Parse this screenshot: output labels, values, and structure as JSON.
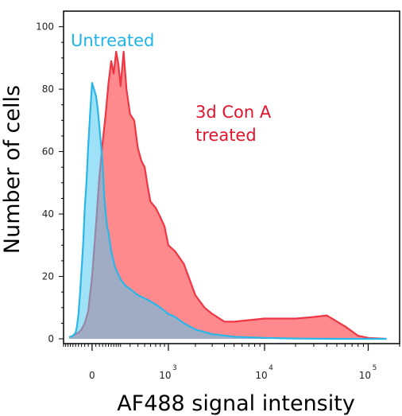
{
  "chart_data": {
    "type": "area",
    "xlabel": "AF488 signal intensity",
    "ylabel": "Number of cells",
    "ylim": [
      0,
      105
    ],
    "yticks": [
      {
        "value": 0,
        "label": "0"
      },
      {
        "value": 20,
        "label": "20"
      },
      {
        "value": 40,
        "label": "40"
      },
      {
        "value": 60,
        "label": "60"
      },
      {
        "value": 80,
        "label": "80"
      },
      {
        "value": 100,
        "label": "100"
      }
    ],
    "x_scale": "biexponential",
    "xticks": [
      {
        "value": 0,
        "base": "0",
        "exp": ""
      },
      {
        "value": 1000,
        "base": "10",
        "exp": "3"
      },
      {
        "value": 10000,
        "base": "10",
        "exp": "4"
      },
      {
        "value": 100000,
        "base": "10",
        "exp": "5"
      }
    ],
    "grid": false,
    "series": [
      {
        "name": "3d Con A treated",
        "fill": "#ff8a8e",
        "stroke": "#ee3645",
        "label_color": "#e2142d",
        "x": [
          -150,
          -120,
          -100,
          -80,
          -60,
          -40,
          -20,
          0,
          20,
          40,
          60,
          80,
          100,
          120,
          140,
          160,
          180,
          200,
          230,
          260,
          300,
          350,
          400,
          450,
          500,
          550,
          600,
          700,
          800,
          900,
          1000,
          1200,
          1500,
          2000,
          2500,
          3000,
          4000,
          5000,
          7000,
          10000,
          15000,
          20000,
          30000,
          40000,
          60000,
          80000,
          100000,
          150000
        ],
        "y": [
          0.5,
          1,
          1.5,
          2,
          3,
          5,
          9,
          20,
          36,
          52,
          63,
          72,
          82,
          89,
          85,
          92,
          88,
          81,
          92,
          80,
          72,
          70,
          61,
          57,
          55,
          49,
          44,
          42,
          39,
          36,
          30,
          28,
          24,
          14,
          10,
          8,
          5.5,
          5.5,
          6,
          6.5,
          6.5,
          6.5,
          7,
          7.5,
          4,
          1,
          0.3,
          0
        ],
        "values": [
          0.5,
          1,
          1.5,
          2,
          3,
          5,
          9,
          20,
          36,
          52,
          63,
          72,
          82,
          89,
          85,
          92,
          88,
          81,
          92,
          80,
          72,
          70,
          61,
          57,
          55,
          49,
          44,
          42,
          39,
          36,
          30,
          28,
          24,
          14,
          10,
          8,
          5.5,
          5.5,
          6,
          6.5,
          6.5,
          6.5,
          7,
          7.5,
          4,
          1,
          0.3,
          0
        ]
      },
      {
        "name": "Untreated",
        "fill": "rgba(80,200,240,0.55)",
        "stroke": "#29b6e8",
        "label_color": "#1fb3e6",
        "x": [
          -150,
          -120,
          -100,
          -90,
          -80,
          -70,
          -60,
          -50,
          -40,
          -30,
          -20,
          -10,
          0,
          10,
          20,
          30,
          40,
          50,
          60,
          70,
          80,
          90,
          100,
          120,
          150,
          200,
          250,
          300,
          400,
          500,
          600,
          700,
          800,
          1000,
          1200,
          1500,
          2000,
          3000,
          5000,
          10000,
          20000,
          50000,
          100000,
          150000
        ],
        "y": [
          0.5,
          1,
          2,
          4,
          8,
          14,
          22,
          30,
          42,
          50,
          62,
          72,
          82,
          80,
          78,
          74,
          68,
          62,
          56,
          46,
          40,
          36,
          34,
          28,
          23,
          19,
          17,
          16,
          14,
          13,
          12,
          11,
          10,
          8,
          7,
          5,
          3,
          1.5,
          0.7,
          0.3,
          0.1,
          0,
          0,
          0
        ],
        "values": [
          0.5,
          1,
          2,
          4,
          8,
          14,
          22,
          30,
          42,
          50,
          62,
          72,
          82,
          80,
          78,
          74,
          68,
          62,
          56,
          46,
          40,
          36,
          34,
          28,
          23,
          19,
          17,
          16,
          14,
          13,
          12,
          11,
          10,
          8,
          7,
          5,
          3,
          1.5,
          0.7,
          0.3,
          0.1,
          0,
          0,
          0
        ]
      }
    ],
    "annotations": [
      {
        "lines": [
          "Untreated"
        ],
        "color": "#1fb3e6"
      },
      {
        "lines": [
          "3d Con A",
          "treated"
        ],
        "color": "#e2142d"
      }
    ]
  }
}
